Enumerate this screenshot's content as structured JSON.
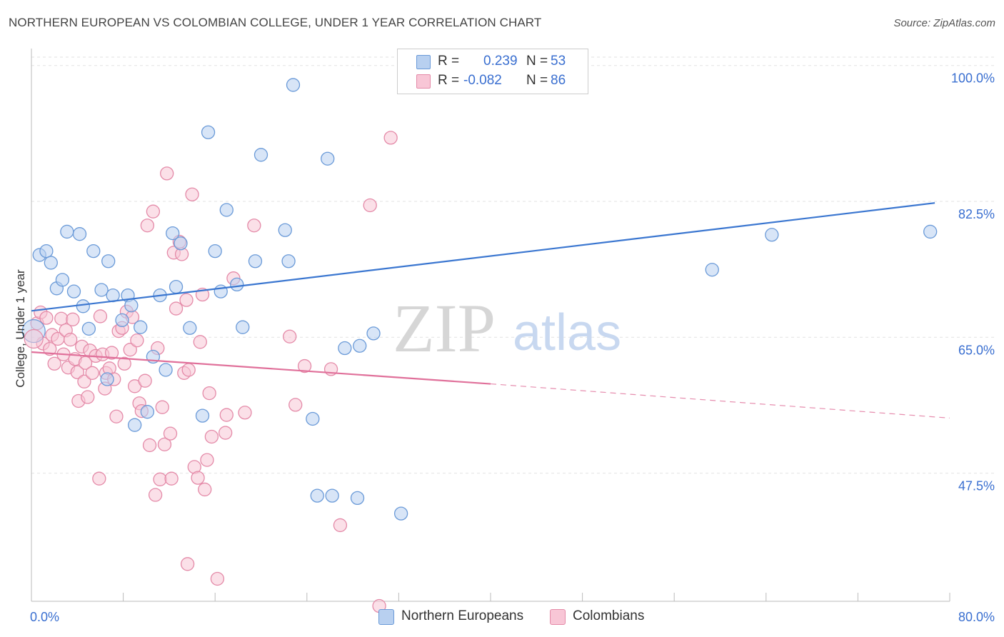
{
  "title": "NORTHERN EUROPEAN VS COLOMBIAN COLLEGE, UNDER 1 YEAR CORRELATION CHART",
  "source": "Source: ZipAtlas.com",
  "watermark": {
    "zip": "ZIP",
    "atlas": "atlas"
  },
  "legend": {
    "r_label": "R =",
    "n_label": "N =",
    "rows": [
      {
        "r": "0.239",
        "n": "53"
      },
      {
        "r": "-0.082",
        "n": "86"
      }
    ]
  },
  "colors": {
    "blue_fill": "#b8d0f0",
    "blue_stroke": "#6a9ad8",
    "blue_line": "#3a76d0",
    "pink_fill": "#f8c6d6",
    "pink_stroke": "#e48aa8",
    "pink_line": "#e0709a",
    "tick_label": "#3a6fd0"
  },
  "chart_data": {
    "type": "scatter",
    "title": "NORTHERN EUROPEAN VS COLOMBIAN COLLEGE, UNDER 1 YEAR CORRELATION CHART",
    "xlabel": "",
    "ylabel": "College, Under 1 year",
    "xlim": [
      0,
      80
    ],
    "ylim": [
      31,
      102
    ],
    "x_tick_labels": [
      {
        "value": 0,
        "label": "0.0%"
      },
      {
        "value": 80,
        "label": "80.0%"
      }
    ],
    "y_ticks": [
      {
        "value": 100,
        "label": "100.0%"
      },
      {
        "value": 82.5,
        "label": "82.5%"
      },
      {
        "value": 65,
        "label": "65.0%"
      },
      {
        "value": 47.5,
        "label": "47.5%"
      }
    ],
    "grid": "horizontal dashed",
    "legend_position": "top-center",
    "series": [
      {
        "name": "Northern Europeans",
        "color": "#6a9ad8",
        "trend": {
          "x0": 0,
          "y0": 68.4,
          "x1": 78.7,
          "y1": 82.3,
          "dashed_from": null
        },
        "points": [
          [
            0.7,
            75.6
          ],
          [
            1.3,
            76.1
          ],
          [
            1.7,
            74.6
          ],
          [
            2.2,
            71.3
          ],
          [
            2.7,
            72.4
          ],
          [
            3.1,
            78.6
          ],
          [
            3.7,
            70.9
          ],
          [
            4.2,
            78.3
          ],
          [
            4.5,
            69.0
          ],
          [
            5.0,
            66.1
          ],
          [
            5.4,
            76.1
          ],
          [
            6.1,
            71.1
          ],
          [
            6.6,
            59.6
          ],
          [
            6.7,
            74.8
          ],
          [
            7.1,
            70.4
          ],
          [
            7.9,
            67.2
          ],
          [
            8.4,
            70.4
          ],
          [
            8.7,
            69.1
          ],
          [
            9.0,
            53.7
          ],
          [
            9.5,
            66.3
          ],
          [
            10.1,
            55.4
          ],
          [
            10.6,
            62.5
          ],
          [
            11.2,
            70.4
          ],
          [
            11.7,
            60.8
          ],
          [
            12.3,
            78.4
          ],
          [
            13.0,
            77.1
          ],
          [
            12.6,
            71.5
          ],
          [
            13.8,
            66.2
          ],
          [
            14.9,
            54.9
          ],
          [
            15.4,
            91.4
          ],
          [
            16.0,
            76.1
          ],
          [
            16.5,
            70.9
          ],
          [
            17.0,
            81.4
          ],
          [
            17.9,
            71.8
          ],
          [
            18.4,
            66.3
          ],
          [
            20.0,
            88.5
          ],
          [
            19.5,
            74.8
          ],
          [
            22.1,
            78.8
          ],
          [
            22.4,
            74.8
          ],
          [
            22.8,
            97.5
          ],
          [
            24.5,
            54.5
          ],
          [
            24.9,
            44.6
          ],
          [
            25.8,
            88.0
          ],
          [
            26.2,
            44.6
          ],
          [
            27.3,
            63.6
          ],
          [
            28.4,
            44.3
          ],
          [
            28.6,
            63.9
          ],
          [
            29.8,
            65.5
          ],
          [
            32.2,
            42.3
          ],
          [
            40.0,
            100.0
          ],
          [
            59.3,
            73.7
          ],
          [
            64.5,
            78.2
          ],
          [
            78.3,
            78.6
          ]
        ]
      },
      {
        "name": "Colombians",
        "color": "#e48aa8",
        "trend": {
          "x0": 0,
          "y0": 63.1,
          "x1": 40.0,
          "y1": 59.0,
          "dashed_to": {
            "x": 80,
            "y": 54.6
          }
        },
        "points": [
          [
            0.5,
            66.8
          ],
          [
            0.8,
            68.2
          ],
          [
            1.0,
            64.2
          ],
          [
            1.3,
            67.5
          ],
          [
            1.6,
            63.5
          ],
          [
            1.8,
            65.3
          ],
          [
            2.0,
            61.6
          ],
          [
            2.3,
            64.8
          ],
          [
            2.6,
            67.4
          ],
          [
            2.8,
            62.8
          ],
          [
            3.0,
            65.9
          ],
          [
            3.2,
            61.1
          ],
          [
            3.4,
            64.7
          ],
          [
            3.6,
            67.3
          ],
          [
            3.8,
            62.2
          ],
          [
            4.0,
            60.5
          ],
          [
            4.1,
            56.8
          ],
          [
            4.4,
            63.8
          ],
          [
            4.6,
            59.3
          ],
          [
            4.7,
            61.7
          ],
          [
            4.9,
            57.3
          ],
          [
            5.1,
            63.3
          ],
          [
            5.3,
            60.4
          ],
          [
            5.6,
            62.6
          ],
          [
            5.9,
            46.8
          ],
          [
            6.0,
            67.7
          ],
          [
            6.2,
            62.8
          ],
          [
            6.4,
            58.4
          ],
          [
            6.5,
            60.4
          ],
          [
            6.8,
            61.0
          ],
          [
            7.0,
            63.0
          ],
          [
            7.2,
            59.6
          ],
          [
            7.4,
            54.8
          ],
          [
            7.6,
            65.8
          ],
          [
            7.9,
            66.2
          ],
          [
            8.1,
            61.6
          ],
          [
            8.3,
            68.3
          ],
          [
            8.6,
            63.4
          ],
          [
            8.8,
            67.6
          ],
          [
            9.0,
            58.7
          ],
          [
            9.2,
            64.6
          ],
          [
            9.4,
            56.5
          ],
          [
            9.6,
            55.5
          ],
          [
            9.9,
            59.4
          ],
          [
            10.1,
            79.4
          ],
          [
            10.3,
            51.1
          ],
          [
            10.6,
            81.2
          ],
          [
            10.8,
            44.7
          ],
          [
            11.0,
            63.6
          ],
          [
            11.2,
            46.7
          ],
          [
            11.4,
            56.0
          ],
          [
            11.6,
            51.2
          ],
          [
            11.8,
            86.1
          ],
          [
            12.1,
            52.6
          ],
          [
            12.4,
            75.9
          ],
          [
            12.6,
            68.7
          ],
          [
            12.9,
            77.3
          ],
          [
            13.1,
            75.7
          ],
          [
            13.3,
            60.4
          ],
          [
            13.5,
            69.8
          ],
          [
            13.7,
            60.8
          ],
          [
            14.0,
            83.4
          ],
          [
            14.2,
            48.3
          ],
          [
            14.5,
            46.9
          ],
          [
            14.7,
            64.4
          ],
          [
            14.9,
            70.5
          ],
          [
            15.1,
            45.4
          ],
          [
            15.3,
            49.2
          ],
          [
            15.5,
            57.8
          ],
          [
            15.7,
            52.2
          ],
          [
            16.2,
            33.9
          ],
          [
            16.9,
            52.7
          ],
          [
            17.6,
            72.6
          ],
          [
            18.6,
            55.3
          ],
          [
            19.4,
            79.4
          ],
          [
            13.6,
            35.8
          ],
          [
            22.5,
            65.1
          ],
          [
            23.0,
            56.3
          ],
          [
            23.8,
            61.3
          ],
          [
            26.1,
            60.9
          ],
          [
            26.9,
            40.8
          ],
          [
            29.5,
            82.0
          ],
          [
            30.3,
            30.4
          ],
          [
            31.3,
            90.7
          ],
          [
            12.2,
            46.8
          ],
          [
            17.0,
            55.0
          ]
        ]
      }
    ]
  }
}
